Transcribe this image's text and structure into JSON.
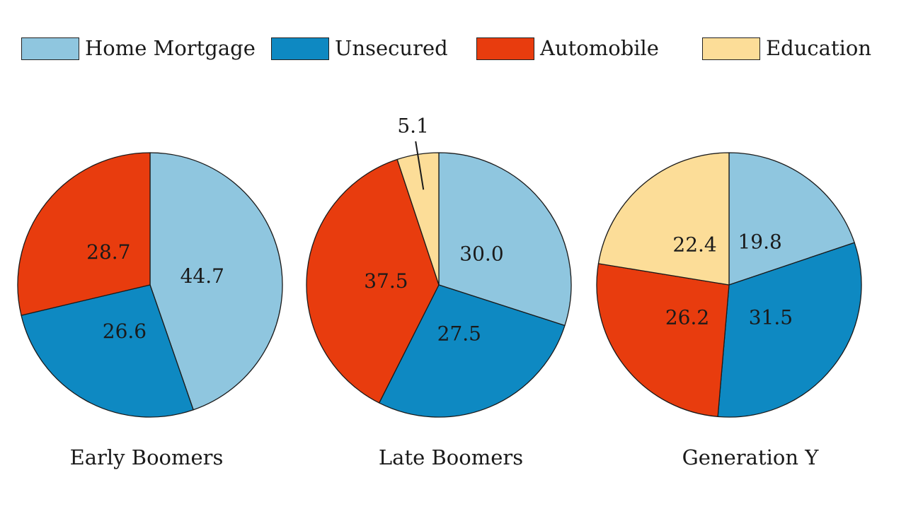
{
  "figure": {
    "background": "#ffffff",
    "text_color": "#1a1a1a",
    "edge_color": "#1a1a1a"
  },
  "legend": {
    "items": [
      {
        "label": "Home Mortgage",
        "color": "#8fc6df"
      },
      {
        "label": "Unsecured",
        "color": "#0e89c2"
      },
      {
        "label": "Automobile",
        "color": "#e83c0e"
      },
      {
        "label": "Education",
        "color": "#fcdd98"
      }
    ]
  },
  "chart_data": [
    {
      "type": "pie",
      "title": "Early Boomers",
      "categories": [
        "Home Mortgage",
        "Unsecured",
        "Automobile"
      ],
      "values": [
        44.7,
        26.6,
        28.7
      ],
      "labels": [
        "44.7",
        "26.6",
        "28.7"
      ],
      "colors": [
        "#8fc6df",
        "#0e89c2",
        "#e83c0e"
      ],
      "start": "top",
      "direction": "clockwise",
      "label_position": "inside"
    },
    {
      "type": "pie",
      "title": "Late Boomers",
      "categories": [
        "Home Mortgage",
        "Unsecured",
        "Automobile",
        "Education"
      ],
      "values": [
        30.0,
        27.5,
        37.5,
        5.1
      ],
      "labels": [
        "30.0",
        "27.5",
        "37.5",
        "5.1"
      ],
      "colors": [
        "#8fc6df",
        "#0e89c2",
        "#e83c0e",
        "#fcdd98"
      ],
      "start": "top",
      "direction": "clockwise",
      "label_position": "inside",
      "callout_labels": [
        "5.1"
      ]
    },
    {
      "type": "pie",
      "title": "Generation Y",
      "categories": [
        "Home Mortgage",
        "Unsecured",
        "Automobile",
        "Education"
      ],
      "values": [
        19.8,
        31.5,
        26.2,
        22.4
      ],
      "labels": [
        "19.8",
        "31.5",
        "26.2",
        "22.4"
      ],
      "colors": [
        "#8fc6df",
        "#0e89c2",
        "#e83c0e",
        "#fcdd98"
      ],
      "start": "top",
      "direction": "clockwise",
      "label_position": "inside"
    }
  ]
}
